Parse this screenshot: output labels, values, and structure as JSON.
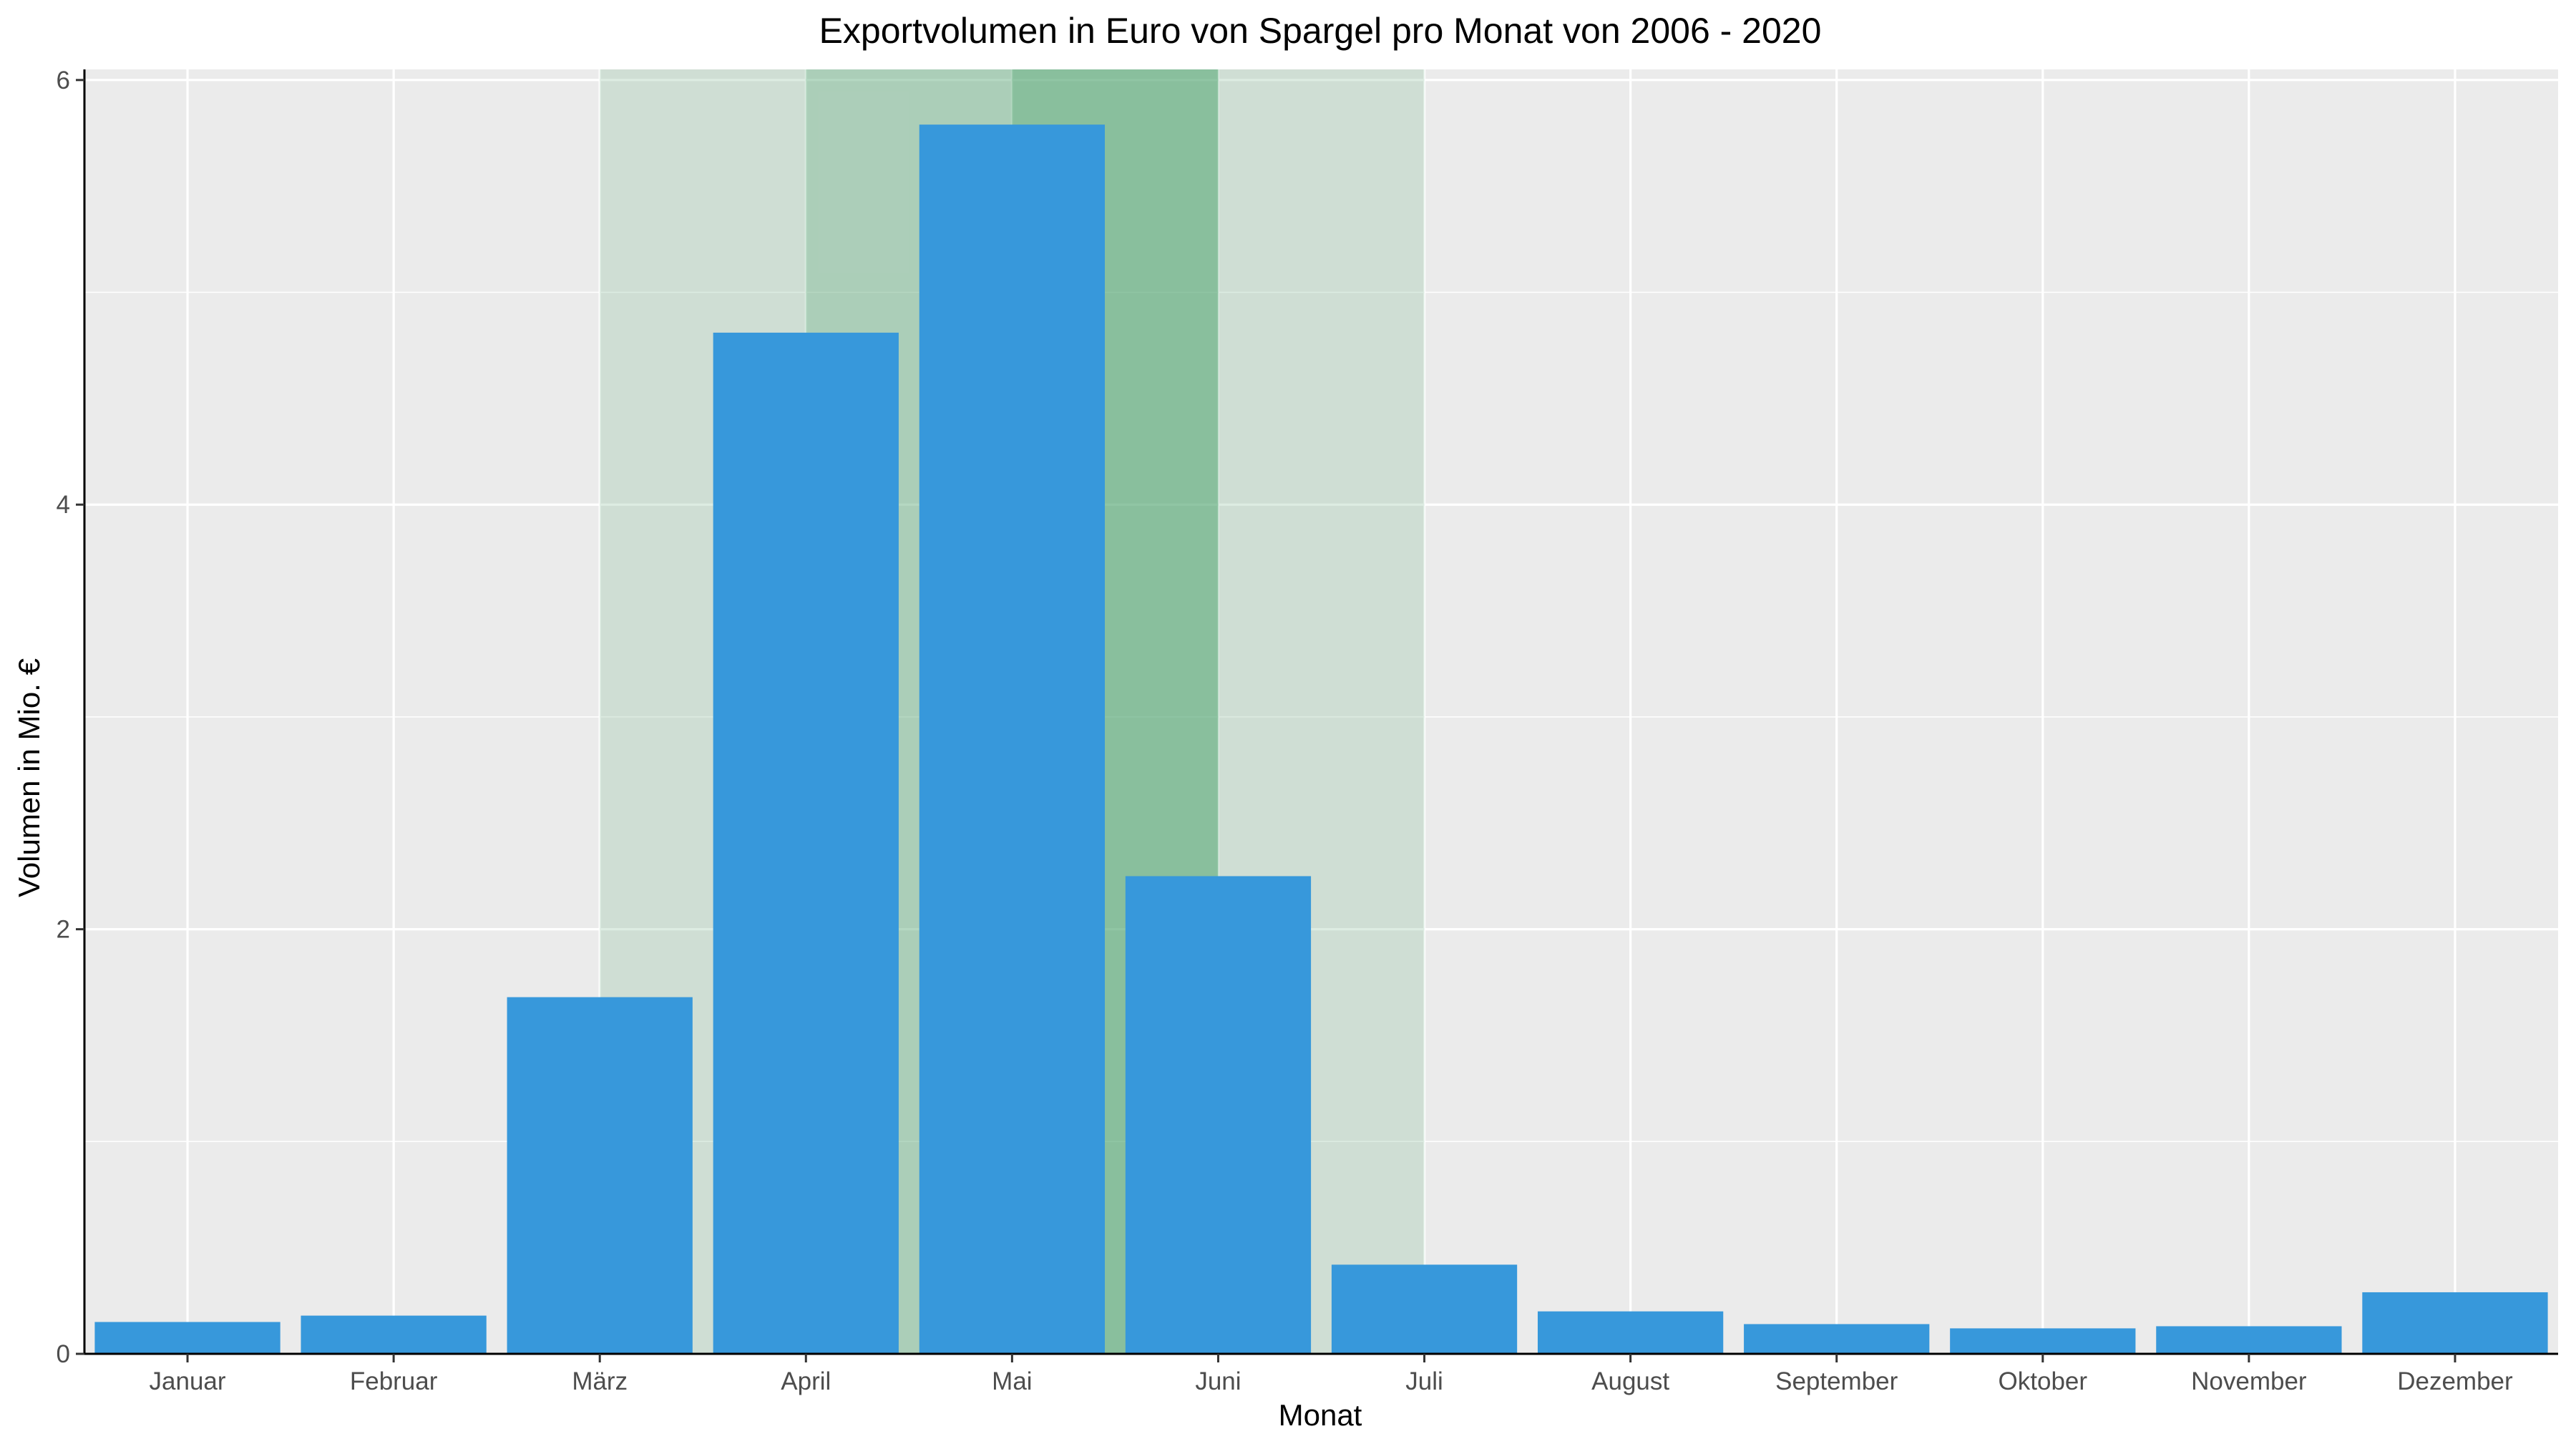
{
  "chart_data": {
    "type": "bar",
    "title": "Exportvolumen in Euro von Spargel pro Monat von 2006 - 2020",
    "xlabel": "Monat",
    "ylabel": "Volumen in Mio. €",
    "categories": [
      "Januar",
      "Februar",
      "März",
      "April",
      "Mai",
      "Juni",
      "Juli",
      "August",
      "September",
      "Oktober",
      "November",
      "Dezember"
    ],
    "values": [
      0.15,
      0.18,
      1.68,
      4.81,
      5.79,
      2.25,
      0.42,
      0.2,
      0.14,
      0.12,
      0.13,
      0.29
    ],
    "ylim": [
      0,
      6.05
    ],
    "yticks": [
      0,
      2,
      4,
      6
    ],
    "grid": true,
    "legend": "none",
    "bar_color": "#3798db",
    "panel_color": "#ebebeb",
    "season_bands": [
      {
        "from": "März",
        "to": "Juli",
        "color": "#8fbf9f",
        "opacity": 0.3
      },
      {
        "from": "April",
        "to": "Juni",
        "color": "#5aa878",
        "opacity": 0.3
      },
      {
        "from": "Mai",
        "to": "Juni",
        "color": "#3a9a60",
        "opacity": 0.3
      }
    ]
  }
}
